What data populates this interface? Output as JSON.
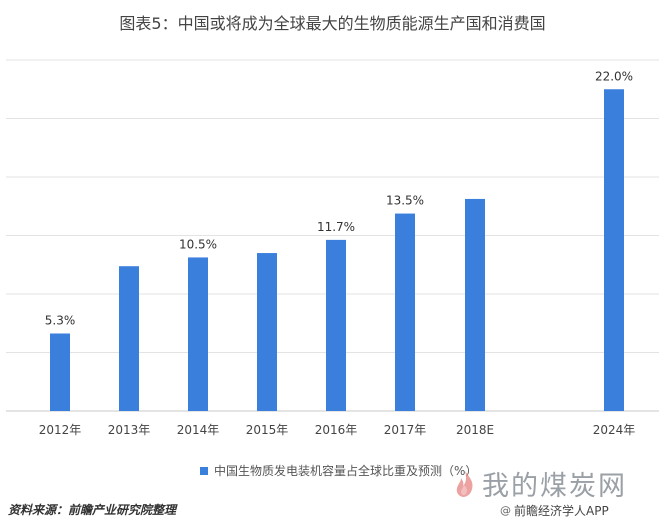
{
  "title": "图表5：中国或将成为全球最大的生物质能源生产国和消费国",
  "legend_label": "中国生物质发电装机容量占全球比重及预测（%）",
  "source": "资料来源：前瞻产业研究院整理",
  "watermark_brand": "我的煤炭网",
  "app_tag": "前瞻经济学人APP",
  "app_icon": "at-icon",
  "colors": {
    "bar": "#3a7fdc",
    "grid": "#e3e3e3",
    "axis": "#c8c8c8"
  },
  "chart_data": {
    "type": "bar",
    "categories": [
      "2012年",
      "2013年",
      "2014年",
      "2015年",
      "2016年",
      "2017年",
      "2018E",
      "2024年"
    ],
    "values": [
      5.3,
      9.9,
      10.5,
      10.8,
      11.7,
      13.5,
      14.5,
      22.0
    ],
    "data_labels": [
      "5.3%",
      "",
      "10.5%",
      "",
      "11.7%",
      "13.5%",
      "",
      "22.0%"
    ],
    "ylim": [
      0,
      24
    ],
    "grid": true,
    "legend_position": "bottom-center"
  }
}
